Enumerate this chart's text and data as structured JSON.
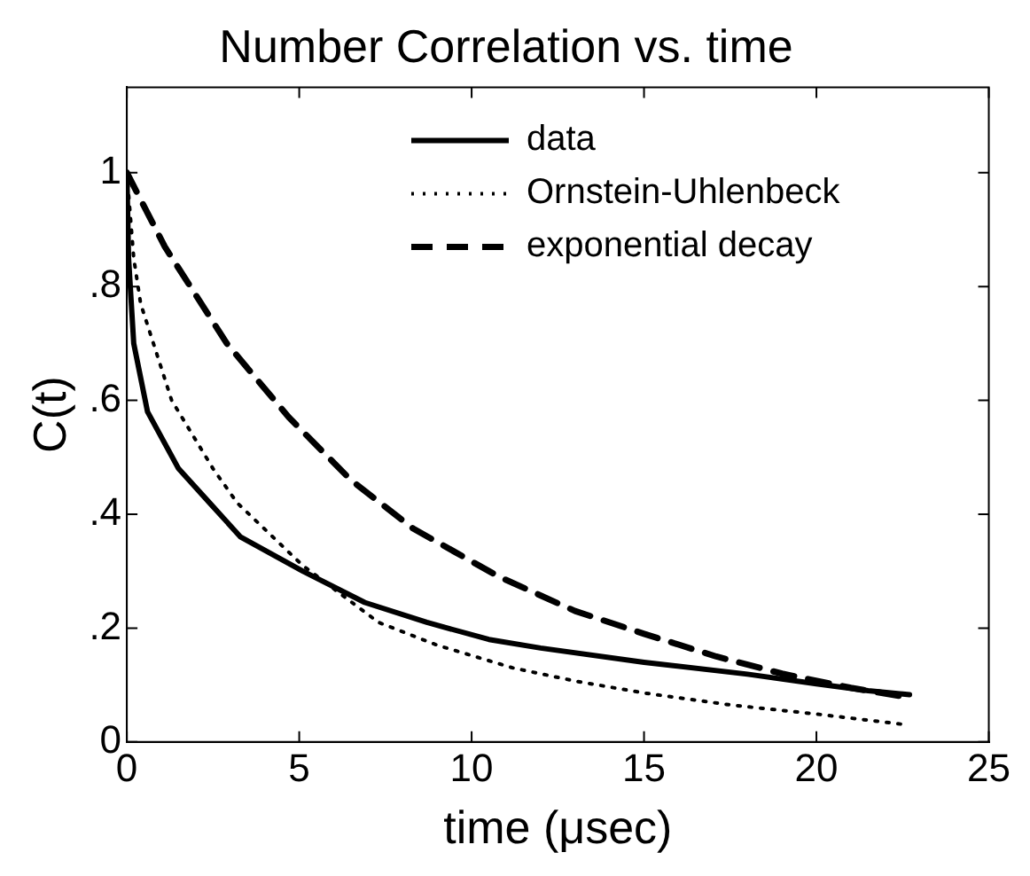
{
  "chart_data": {
    "type": "line",
    "title": "Number Correlation vs. time",
    "xlabel": "time (μsec)",
    "ylabel": "C(t)",
    "xlim": [
      0,
      25
    ],
    "xticks": [
      0,
      5,
      10,
      15,
      20,
      25
    ],
    "ylim": [
      0,
      1.15
    ],
    "yticks": [
      0,
      {
        "value": 0.2,
        "label": ".2"
      },
      {
        "value": 0.4,
        "label": ".4"
      },
      {
        "value": 0.6,
        "label": ".6"
      },
      {
        "value": 0.8,
        "label": ".8"
      },
      1
    ],
    "grid": false,
    "legend": "top right",
    "series": [
      {
        "name": "data",
        "color": "#000000",
        "line_style": "solid",
        "x": [
          0,
          0.05,
          0.2,
          0.6,
          1.5,
          2.4,
          3.3,
          5.1,
          6.9,
          8.7,
          10.5,
          12,
          15,
          18,
          20,
          21.5,
          22.7
        ],
        "values": [
          1,
          0.85,
          0.7,
          0.58,
          0.48,
          0.42,
          0.36,
          0.3,
          0.245,
          0.21,
          0.18,
          0.165,
          0.14,
          0.119,
          0.102,
          0.09,
          0.083
        ]
      },
      {
        "name": "Ornstein-Uhlenbeck",
        "color": "#000000",
        "line_style": "dotted",
        "x": [
          0,
          0.2,
          0.4,
          1.3,
          2.5,
          3.2,
          5.1,
          7.3,
          9,
          11.2,
          13,
          15,
          17.5,
          20,
          22.5
        ],
        "values": [
          1,
          0.85,
          0.77,
          0.6,
          0.48,
          0.42,
          0.31,
          0.21,
          0.17,
          0.13,
          0.107,
          0.086,
          0.065,
          0.049,
          0.031
        ]
      },
      {
        "name": "exponential decay",
        "color": "#000000",
        "line_style": "dashed",
        "x": [
          0,
          1.1,
          2.9,
          4.7,
          6.5,
          8.3,
          10.8,
          13,
          15,
          17.1,
          19,
          21,
          22.5
        ],
        "values": [
          1,
          0.87,
          0.7,
          0.57,
          0.46,
          0.375,
          0.29,
          0.23,
          0.19,
          0.15,
          0.12,
          0.095,
          0.08
        ]
      }
    ]
  }
}
